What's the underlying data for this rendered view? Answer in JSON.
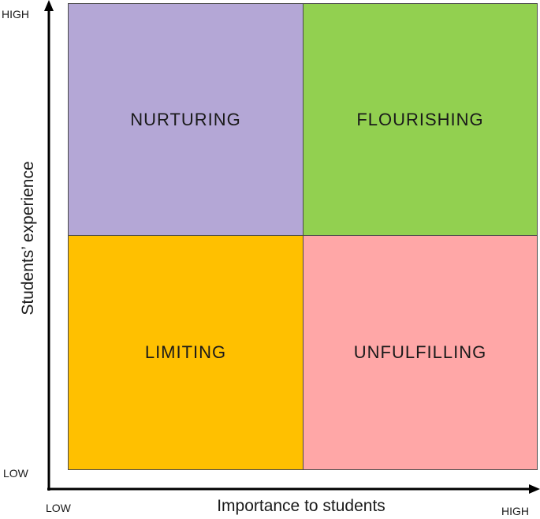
{
  "quadrants": {
    "top_left": {
      "label": "NURTURING",
      "color": "#b4a7d6"
    },
    "top_right": {
      "label": "FLOURISHING",
      "color": "#92d050"
    },
    "bottom_left": {
      "label": "LIMITING",
      "color": "#ffc000"
    },
    "bottom_right": {
      "label": "UNFULFILLING",
      "color": "#ffa7a7"
    }
  },
  "y_axis": {
    "title": "Students’ experience",
    "high_label": "HIGH",
    "low_label": "LOW"
  },
  "x_axis": {
    "title": "Importance to students",
    "low_label": "LOW",
    "high_label": "HIGH"
  }
}
